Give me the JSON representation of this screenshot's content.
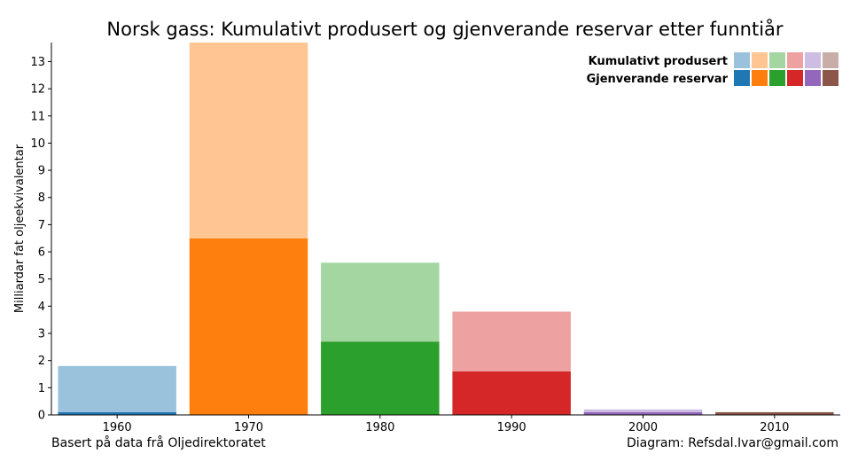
{
  "chart_data": {
    "type": "bar",
    "title": "Norsk gass: Kumulativt produsert og gjenverande reservar etter funntiår",
    "ylabel": "Milliardar fat oljeekvivalentar",
    "xlabel": "",
    "categories": [
      "1960",
      "1970",
      "1980",
      "1990",
      "2000",
      "2010"
    ],
    "ylim": [
      0,
      13.7
    ],
    "yticks": [
      "0",
      "1",
      "2",
      "3",
      "4",
      "5",
      "6",
      "7",
      "8",
      "9",
      "10",
      "11",
      "12",
      "13"
    ],
    "series": [
      {
        "name": "Kumulativt produsert",
        "values": [
          1.7,
          7.2,
          2.9,
          2.2,
          0.1,
          0.0
        ],
        "colors": [
          "#9ac2dd",
          "#ffc593",
          "#a3d6a1",
          "#eda1a1",
          "#cdbde3",
          "#c9ada7"
        ]
      },
      {
        "name": "Gjenverande reservar",
        "values": [
          0.1,
          6.5,
          2.7,
          1.6,
          0.1,
          0.1
        ],
        "colors": [
          "#1f77b4",
          "#ff7f0e",
          "#2ca02c",
          "#d62728",
          "#9467bd",
          "#8c564b"
        ]
      }
    ],
    "stacking": "Gjenverande reservar at bottom, Kumulativt produsert on top",
    "legend_position": "top-right",
    "grid": false
  },
  "footer": {
    "source": "Basert på data frå Oljedirektoratet",
    "credit": "Diagram: Refsdal.Ivar@gmail.com"
  }
}
